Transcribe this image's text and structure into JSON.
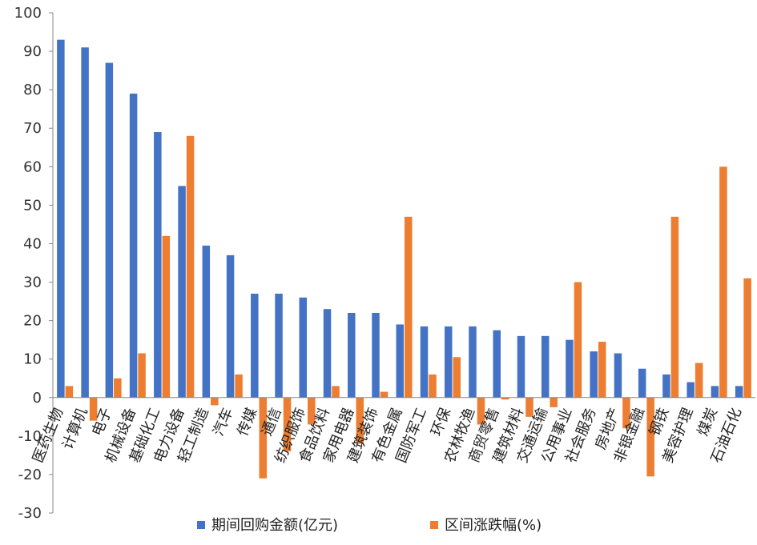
{
  "chart_data": {
    "type": "bar",
    "title": "",
    "xlabel": "",
    "ylabel": "",
    "ylim": [
      -30,
      100
    ],
    "yticks": [
      100,
      90,
      80,
      70,
      60,
      50,
      40,
      30,
      20,
      10,
      0,
      -10,
      -20,
      -30
    ],
    "grid": false,
    "legend_position": "bottom",
    "categories": [
      "医药生物",
      "计算机",
      "电子",
      "机械设备",
      "基础化工",
      "电力设备",
      "轻工制造",
      "汽车",
      "传媒",
      "通信",
      "纺织服饰",
      "食品饮料",
      "家用电器",
      "建筑装饰",
      "有色金属",
      "国防军工",
      "环保",
      "农林牧渔",
      "商贸零售",
      "建筑材料",
      "交通运输",
      "公用事业",
      "社会服务",
      "房地产",
      "非银金融",
      "钢铁",
      "美容护理",
      "煤炭",
      "石油石化"
    ],
    "series": [
      {
        "name": "期间回购金额(亿元)",
        "color": "#4472C4",
        "values": [
          93,
          91,
          87,
          79,
          69,
          55,
          39.5,
          37,
          27,
          27,
          26,
          23,
          22,
          22,
          19,
          18.5,
          18.5,
          18.5,
          17.5,
          16,
          16,
          15,
          12,
          11.5,
          7.5,
          6,
          4,
          3,
          3
        ]
      },
      {
        "name": "区间涨跌幅(%)",
        "color": "#ED7D31",
        "values": [
          3,
          -6,
          5,
          11.5,
          42,
          68,
          -2,
          6,
          -21,
          -14,
          -7,
          3,
          -12,
          1.5,
          47,
          6,
          10.5,
          -7,
          -0.5,
          -5,
          -2.5,
          30,
          14.5,
          -8,
          -20.5,
          47,
          9,
          60,
          31
        ]
      }
    ]
  }
}
